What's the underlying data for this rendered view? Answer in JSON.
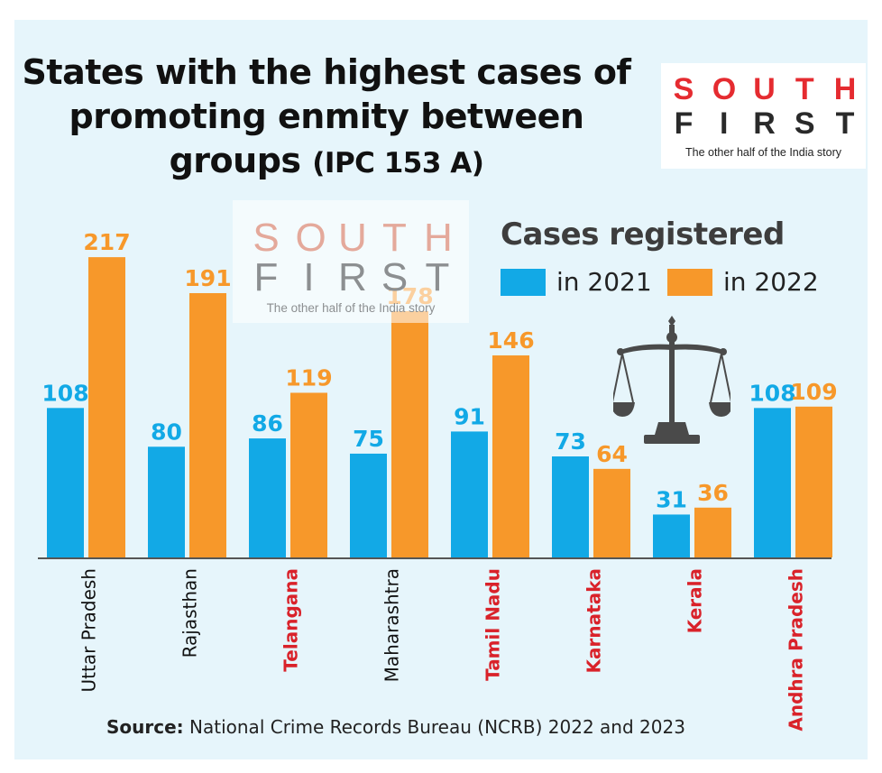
{
  "title_main": "States with the highest cases of promoting enmity between groups",
  "title_suffix": "(IPC 153 A)",
  "logo": {
    "top_letters": [
      "S",
      "O",
      "U",
      "T",
      "H"
    ],
    "bottom_letters": [
      "F",
      "I",
      "R",
      "S",
      "T"
    ],
    "tagline": "The other half of the India story"
  },
  "legend": {
    "title": "Cases registered",
    "items": [
      {
        "label": "in 2021",
        "color": "#12a9e6"
      },
      {
        "label": "in 2022",
        "color": "#f7982a"
      }
    ]
  },
  "source": {
    "label": "Source:",
    "text": "National Crime Records Bureau (NCRB) 2022 and 2023"
  },
  "colors": {
    "series_2021": "#12a9e6",
    "series_2022": "#f7982a",
    "label_2021": "#12a9e6",
    "label_2022": "#f7982a",
    "state_highlight": "#d9222a",
    "state_default": "#111111",
    "panel_background": "#e6f5fb"
  },
  "icon": "scales-of-justice-icon",
  "chart_data": {
    "type": "bar",
    "title": "States with the highest cases of promoting enmity between groups (IPC 153 A)",
    "categories": [
      "Uttar Pradesh",
      "Rajasthan",
      "Telangana",
      "Maharashtra",
      "Tamil Nadu",
      "Karnataka",
      "Kerala",
      "Andhra Pradesh"
    ],
    "highlighted_categories": [
      "Telangana",
      "Tamil Nadu",
      "Karnataka",
      "Kerala",
      "Andhra Pradesh"
    ],
    "series": [
      {
        "name": "in 2021",
        "values": [
          108,
          80,
          86,
          75,
          91,
          73,
          31,
          108
        ]
      },
      {
        "name": "in 2022",
        "values": [
          217,
          191,
          119,
          178,
          146,
          64,
          36,
          109
        ]
      }
    ],
    "ylim": [
      0,
      230
    ],
    "grid": false,
    "legend_position": "top-right"
  }
}
